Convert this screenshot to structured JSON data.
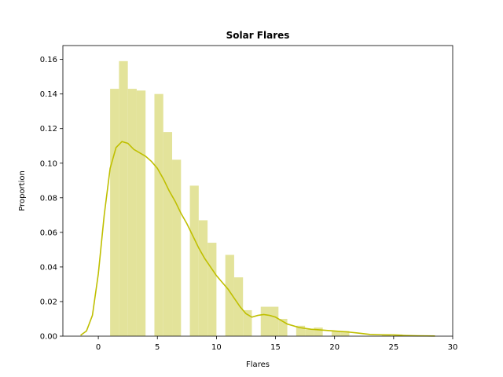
{
  "chart_data": {
    "type": "bar",
    "title": "Solar Flares",
    "xlabel": "Flares",
    "ylabel": "Proportion",
    "xlim": [
      -3.0,
      30.0
    ],
    "ylim": [
      0.0,
      0.168
    ],
    "xticks": [
      0,
      5,
      10,
      15,
      20,
      25,
      30
    ],
    "yticks": [
      0.0,
      0.02,
      0.04,
      0.06,
      0.08,
      0.1,
      0.12,
      0.14,
      0.16
    ],
    "ytick_labels": [
      "0.00",
      "0.02",
      "0.04",
      "0.06",
      "0.08",
      "0.10",
      "0.12",
      "0.14",
      "0.16"
    ],
    "grid": false,
    "bar_color": "#e3e39a",
    "line_color": "#bfbf00",
    "histogram": {
      "bin_width": 0.75,
      "bins": [
        {
          "x0": 1.0,
          "value": 0.143
        },
        {
          "x0": 1.75,
          "value": 0.159
        },
        {
          "x0": 2.5,
          "value": 0.143
        },
        {
          "x0": 3.25,
          "value": 0.142
        },
        {
          "x0": 4.75,
          "value": 0.14
        },
        {
          "x0": 5.5,
          "value": 0.118
        },
        {
          "x0": 6.25,
          "value": 0.102
        },
        {
          "x0": 7.75,
          "value": 0.087
        },
        {
          "x0": 8.5,
          "value": 0.067
        },
        {
          "x0": 9.25,
          "value": 0.054
        },
        {
          "x0": 10.75,
          "value": 0.047
        },
        {
          "x0": 11.5,
          "value": 0.034
        },
        {
          "x0": 12.25,
          "value": 0.015
        },
        {
          "x0": 13.75,
          "value": 0.017
        },
        {
          "x0": 14.5,
          "value": 0.017
        },
        {
          "x0": 15.25,
          "value": 0.01
        },
        {
          "x0": 16.75,
          "value": 0.006
        },
        {
          "x0": 17.5,
          "value": 0.004
        },
        {
          "x0": 18.25,
          "value": 0.005
        },
        {
          "x0": 19.75,
          "value": 0.003
        },
        {
          "x0": 20.5,
          "value": 0.003
        },
        {
          "x0": 24.0,
          "value": 0.001
        },
        {
          "x0": 25.0,
          "value": 0.001
        }
      ]
    },
    "kde": {
      "x": [
        -1.5,
        -1.0,
        -0.5,
        0.0,
        0.5,
        1.0,
        1.5,
        2.0,
        2.5,
        3.0,
        3.5,
        4.0,
        4.5,
        5.0,
        5.5,
        6.0,
        6.5,
        7.0,
        7.5,
        8.0,
        8.5,
        9.0,
        9.5,
        10.0,
        10.5,
        11.0,
        11.5,
        12.0,
        12.5,
        13.0,
        13.5,
        14.0,
        14.5,
        15.0,
        15.5,
        16.0,
        17.0,
        18.0,
        19.0,
        20.0,
        21.0,
        22.0,
        23.0,
        24.0,
        25.0,
        26.0,
        27.0,
        28.5
      ],
      "y": [
        0.0005,
        0.003,
        0.012,
        0.036,
        0.07,
        0.097,
        0.109,
        0.1125,
        0.1115,
        0.108,
        0.106,
        0.104,
        0.101,
        0.097,
        0.091,
        0.084,
        0.078,
        0.071,
        0.065,
        0.058,
        0.051,
        0.045,
        0.04,
        0.035,
        0.031,
        0.027,
        0.022,
        0.017,
        0.013,
        0.011,
        0.012,
        0.0125,
        0.012,
        0.011,
        0.009,
        0.007,
        0.005,
        0.004,
        0.0035,
        0.003,
        0.0025,
        0.0018,
        0.001,
        0.0008,
        0.0007,
        0.0004,
        0.0002,
        0.0001
      ]
    }
  }
}
